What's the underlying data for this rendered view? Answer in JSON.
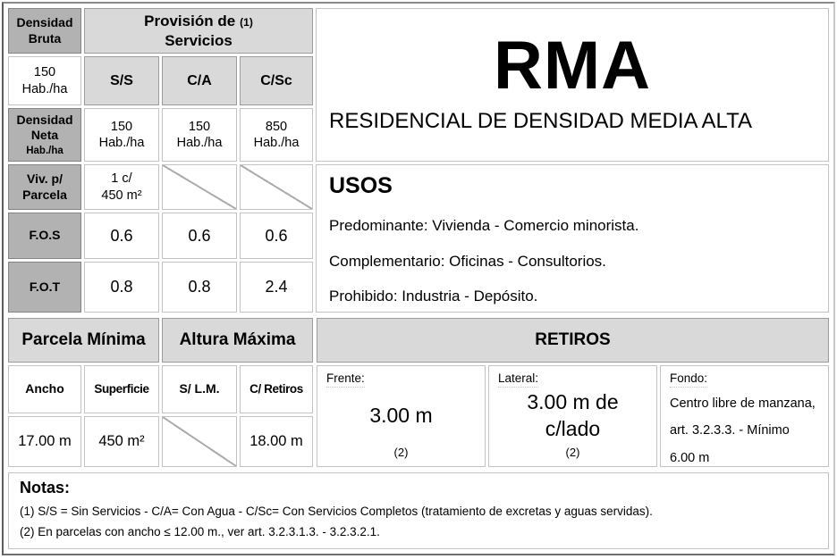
{
  "palette": {
    "cell_dark": "#b2b2b2",
    "cell_light": "#d9d9d9",
    "cell_white": "#ffffff",
    "text": "#000000"
  },
  "sheet": {
    "density_table": {
      "bruta_label": "Densidad\nBruta",
      "bruta_value": "150\nHab./ha",
      "provision": {
        "line1": "Provisión de",
        "ref": "(1)",
        "line2": "Servicios"
      },
      "service_cols": [
        "S/S",
        "C/A",
        "C/Sc"
      ],
      "neta": {
        "label": "Densidad\nNeta",
        "sub": "Hab./ha",
        "values": [
          "150\nHab./ha",
          "150\nHab./ha",
          "850\nHab./ha"
        ]
      },
      "viv": {
        "label": "Viv. p/\nParcela",
        "value": "1 c/\n450 m²"
      },
      "fos": {
        "label": "F.O.S",
        "values": [
          "0.6",
          "0.6",
          "0.6"
        ]
      },
      "fot": {
        "label": "F.O.T",
        "values": [
          "0.8",
          "0.8",
          "2.4"
        ]
      }
    },
    "code_panel": {
      "code": "RMA",
      "name": "RESIDENCIAL DE DENSIDAD MEDIA ALTA"
    },
    "usos": {
      "title": "USOS",
      "predominante": "Predominante: Vivienda - Comercio minorista.",
      "complementario": "Complementario: Oficinas - Consultorios.",
      "prohibido": "Prohibido: Industria - Depósito."
    },
    "parcela_minima": {
      "title": "Parcela Mínima",
      "col1": "Ancho",
      "col2": "Superficie",
      "val1": "17.00 m",
      "val2": "450 m²"
    },
    "altura_maxima": {
      "title": "Altura Máxima",
      "col1": "S/ L.M.",
      "col2": "C/ Retiros",
      "val2": "18.00 m"
    },
    "retiros": {
      "title": "RETIROS",
      "frente": {
        "label": "Frente:",
        "value": "3.00 m",
        "ref": "(2)"
      },
      "lateral": {
        "label": "Lateral:",
        "value": "3.00 m de\nc/lado",
        "ref": "(2)"
      },
      "fondo": {
        "label": "Fondo:",
        "text": "Centro libre de manzana,\nart. 3.2.3.3. - Mínimo\n6.00 m"
      }
    },
    "notas": {
      "title": "Notas:",
      "nota1": "(1) S/S = Sin Servicios - C/A= Con Agua - C/Sc= Con Servicios Completos (tratamiento de excretas y aguas servidas).",
      "nota2": "(2) En parcelas con ancho ≤ 12.00 m., ver art. 3.2.3.1.3. - 3.2.3.2.1."
    }
  }
}
